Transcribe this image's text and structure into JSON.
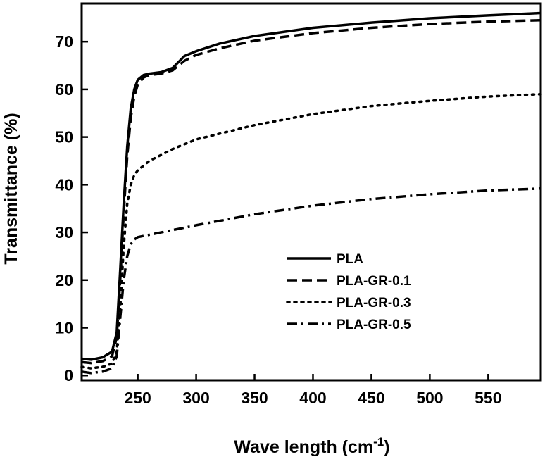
{
  "chart_data": {
    "type": "line",
    "title": "",
    "xlabel": "Wave length (cm",
    "xlabel_sup": "-1",
    "xlabel_close": ")",
    "ylabel": "Transmittance (%)",
    "xlim": [
      202,
      595
    ],
    "ylim": [
      -1,
      78
    ],
    "xticks": [
      250,
      300,
      350,
      400,
      450,
      500,
      550
    ],
    "xtick_labels": [
      "250",
      "300",
      "350",
      "400",
      "450",
      "500",
      "550"
    ],
    "yticks": [
      0,
      10,
      20,
      30,
      40,
      50,
      60,
      70
    ],
    "ytick_labels": [
      "0",
      "10",
      "20",
      "30",
      "40",
      "50",
      "60",
      "70"
    ],
    "grid": false,
    "legend_position": "lower-right",
    "series": [
      {
        "name": "PLA",
        "style": "solid",
        "points": [
          [
            202,
            3.5
          ],
          [
            210,
            3.3
          ],
          [
            220,
            3.8
          ],
          [
            228,
            5
          ],
          [
            232,
            9
          ],
          [
            235,
            22
          ],
          [
            238,
            36
          ],
          [
            241,
            48
          ],
          [
            244,
            56
          ],
          [
            247,
            60
          ],
          [
            250,
            62
          ],
          [
            255,
            63
          ],
          [
            260,
            63.3
          ],
          [
            270,
            63.6
          ],
          [
            280,
            64.5
          ],
          [
            290,
            67
          ],
          [
            300,
            68
          ],
          [
            320,
            69.6
          ],
          [
            350,
            71.2
          ],
          [
            400,
            72.9
          ],
          [
            450,
            74
          ],
          [
            500,
            74.9
          ],
          [
            550,
            75.5
          ],
          [
            595,
            76
          ]
        ]
      },
      {
        "name": "PLA-GR-0.1",
        "style": "dashed",
        "points": [
          [
            202,
            2.8
          ],
          [
            210,
            2.6
          ],
          [
            220,
            3
          ],
          [
            228,
            4
          ],
          [
            232,
            8
          ],
          [
            235,
            20
          ],
          [
            238,
            34
          ],
          [
            241,
            46
          ],
          [
            244,
            54
          ],
          [
            247,
            58.5
          ],
          [
            250,
            61
          ],
          [
            255,
            62.5
          ],
          [
            260,
            63
          ],
          [
            270,
            63.3
          ],
          [
            280,
            64
          ],
          [
            290,
            66
          ],
          [
            300,
            67.2
          ],
          [
            320,
            68.6
          ],
          [
            350,
            70.2
          ],
          [
            400,
            71.8
          ],
          [
            450,
            72.9
          ],
          [
            500,
            73.7
          ],
          [
            550,
            74.2
          ],
          [
            595,
            74.5
          ]
        ]
      },
      {
        "name": "PLA-GR-0.3",
        "style": "dotted",
        "points": [
          [
            202,
            1.8
          ],
          [
            210,
            1.5
          ],
          [
            220,
            1.8
          ],
          [
            228,
            2.5
          ],
          [
            232,
            5
          ],
          [
            235,
            14
          ],
          [
            238,
            27
          ],
          [
            241,
            36
          ],
          [
            244,
            40
          ],
          [
            247,
            42
          ],
          [
            250,
            43
          ],
          [
            255,
            44
          ],
          [
            260,
            45
          ],
          [
            280,
            47.5
          ],
          [
            300,
            49.5
          ],
          [
            350,
            52.5
          ],
          [
            400,
            54.8
          ],
          [
            450,
            56.5
          ],
          [
            500,
            57.6
          ],
          [
            550,
            58.5
          ],
          [
            595,
            59
          ]
        ]
      },
      {
        "name": "PLA-GR-0.5",
        "style": "dashdot",
        "points": [
          [
            202,
            0.8
          ],
          [
            210,
            0.5
          ],
          [
            220,
            0.8
          ],
          [
            228,
            1.5
          ],
          [
            232,
            4
          ],
          [
            235,
            12
          ],
          [
            238,
            20
          ],
          [
            241,
            25
          ],
          [
            244,
            27.5
          ],
          [
            247,
            28.5
          ],
          [
            250,
            29
          ],
          [
            260,
            29.5
          ],
          [
            280,
            30.5
          ],
          [
            300,
            31.5
          ],
          [
            350,
            33.8
          ],
          [
            400,
            35.6
          ],
          [
            450,
            37
          ],
          [
            500,
            38
          ],
          [
            550,
            38.8
          ],
          [
            595,
            39.2
          ]
        ]
      }
    ]
  }
}
